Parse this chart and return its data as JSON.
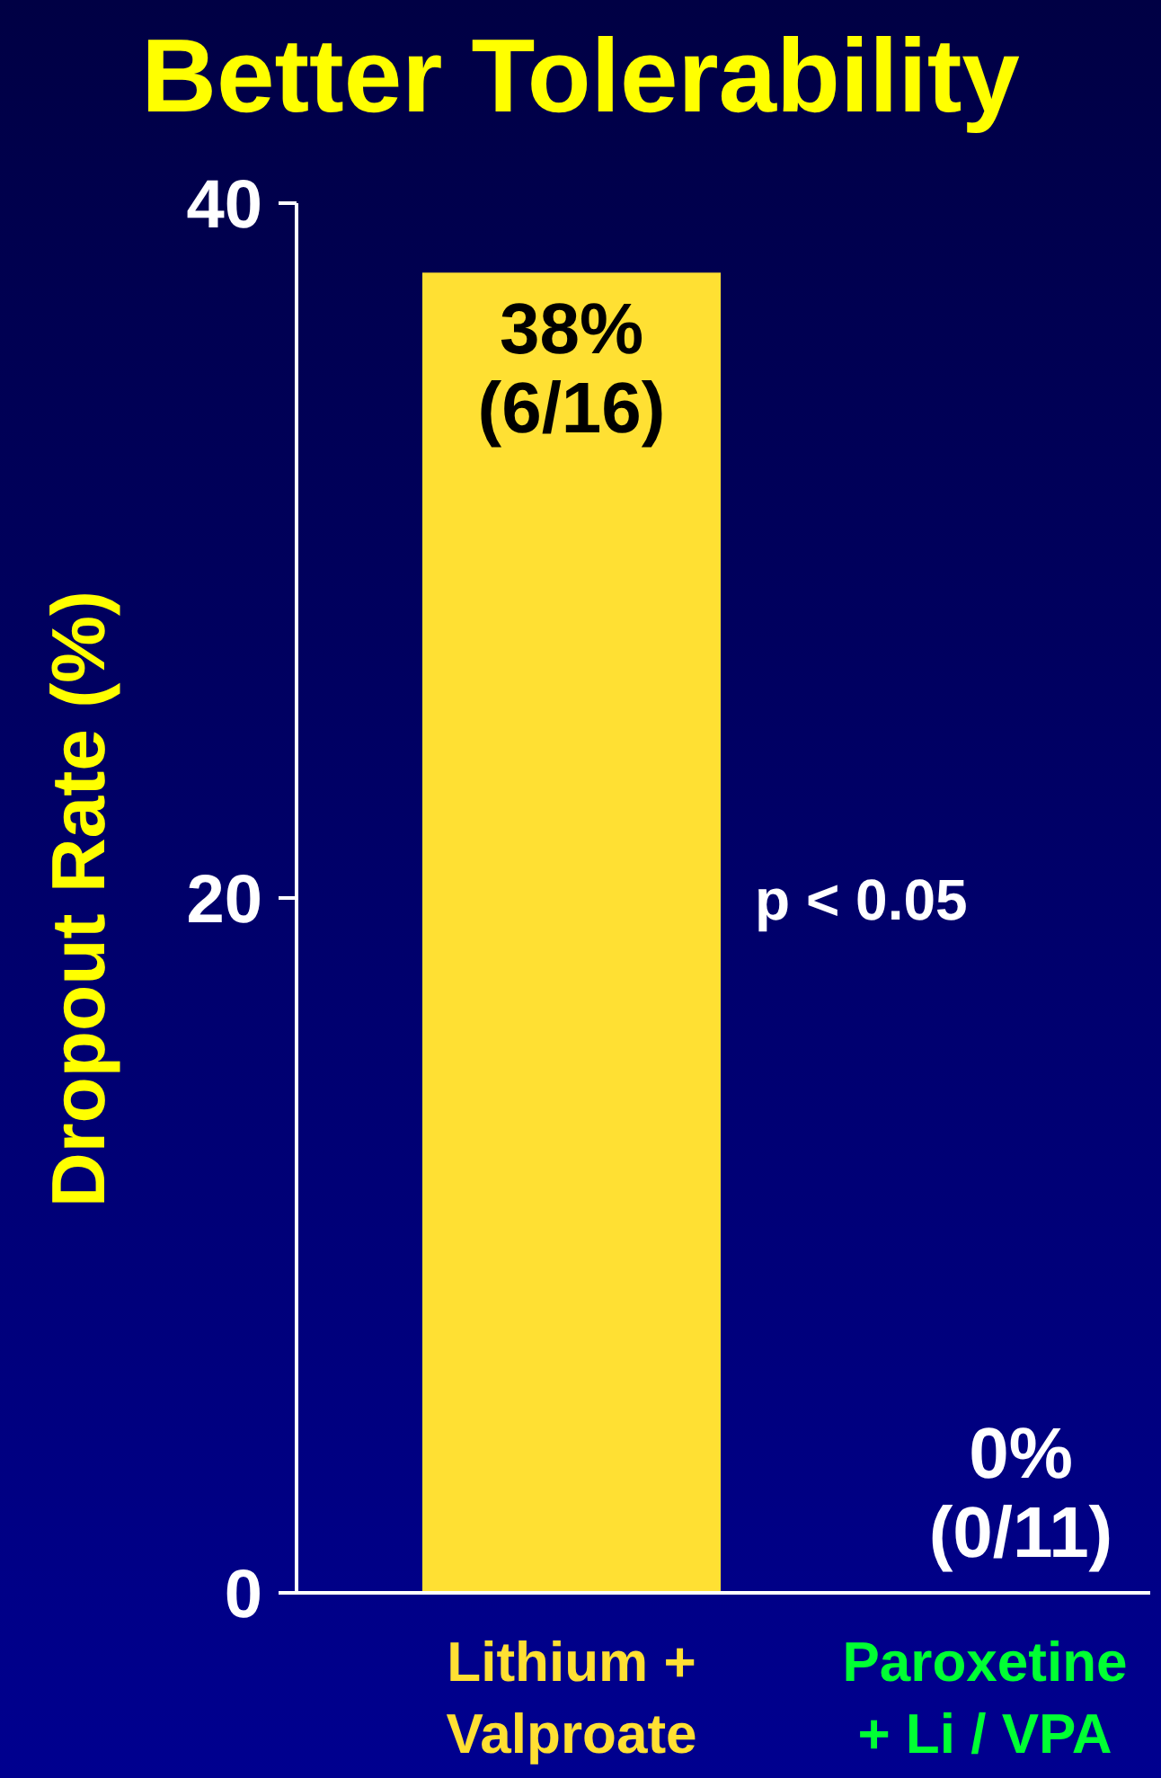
{
  "chart_data": {
    "type": "bar",
    "title": "Better Tolerability",
    "ylabel": "Dropout Rate (%)",
    "categories": [
      "Lithium +\nValproate",
      "Paroxetine\n+ Li / VPA"
    ],
    "values": [
      38,
      0
    ],
    "colors": [
      "#ffe033",
      "#00ff33"
    ],
    "value_labels": [
      "38%\n(6/16)",
      "0%\n(0/11)"
    ],
    "ylim": [
      0,
      40
    ],
    "yticks": [
      0,
      20,
      40
    ],
    "annotations": [
      "p < 0.05"
    ]
  }
}
